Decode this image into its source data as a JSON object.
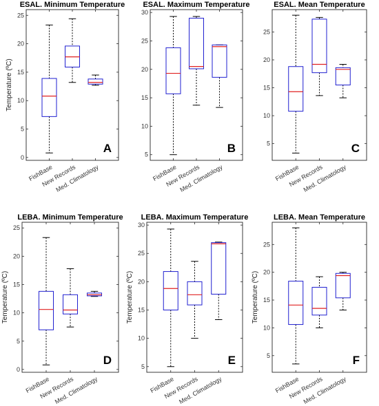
{
  "chart_data": [
    {
      "type": "box",
      "title": "ESAL. Minimum Temperature",
      "panel_label": "A",
      "ylabel": "Temperature (ºC)",
      "ylim": [
        -0.5,
        26
      ],
      "yticks": [
        0,
        5,
        10,
        15,
        20,
        25
      ],
      "categories": [
        "FishBase",
        "New Records",
        "Med. Climatology"
      ],
      "boxes": [
        {
          "min": 0.8,
          "q1": 7.2,
          "median": 10.8,
          "q3": 13.9,
          "max": 23.3
        },
        {
          "min": 13.2,
          "q1": 15.9,
          "median": 17.7,
          "q3": 19.6,
          "max": 24.4
        },
        {
          "min": 12.7,
          "q1": 12.9,
          "median": 13.2,
          "q3": 13.8,
          "max": 14.5
        }
      ]
    },
    {
      "type": "box",
      "title": "ESAL. Maximum Temperature",
      "panel_label": "B",
      "ylabel": "",
      "ylim": [
        4,
        30.5
      ],
      "yticks": [
        5,
        10,
        15,
        20,
        25,
        30
      ],
      "categories": [
        "FishBase",
        "New Records",
        "Med. Climatology"
      ],
      "boxes": [
        {
          "min": 5.0,
          "q1": 15.7,
          "median": 19.3,
          "q3": 23.8,
          "max": 29.3
        },
        {
          "min": 13.7,
          "q1": 20.1,
          "median": 20.5,
          "q3": 29.0,
          "max": 29.3
        },
        {
          "min": 13.3,
          "q1": 18.6,
          "median": 24.0,
          "q3": 24.3,
          "max": 24.3
        }
      ]
    },
    {
      "type": "box",
      "title": "ESAL. Mean Temperature",
      "panel_label": "C",
      "ylabel": "",
      "ylim": [
        2,
        29
      ],
      "yticks": [
        5,
        10,
        15,
        20,
        25
      ],
      "categories": [
        "FishBase",
        "New Records",
        "Med. Climatology"
      ],
      "boxes": [
        {
          "min": 3.3,
          "q1": 10.8,
          "median": 14.3,
          "q3": 18.8,
          "max": 28.0
        },
        {
          "min": 13.6,
          "q1": 17.7,
          "median": 19.2,
          "q3": 27.3,
          "max": 27.6
        },
        {
          "min": 13.2,
          "q1": 15.5,
          "median": 18.3,
          "q3": 18.6,
          "max": 19.2
        }
      ]
    },
    {
      "type": "box",
      "title": "LEBA. Minimum Temperature",
      "panel_label": "D",
      "ylabel": "Temperature (ºC)",
      "ylim": [
        -0.5,
        26
      ],
      "yticks": [
        0,
        5,
        10,
        15,
        20,
        25
      ],
      "categories": [
        "FishBase",
        "New Records",
        "Med. Climatology"
      ],
      "boxes": [
        {
          "min": 0.8,
          "q1": 7.0,
          "median": 10.6,
          "q3": 13.8,
          "max": 23.3
        },
        {
          "min": 7.5,
          "q1": 9.8,
          "median": 10.5,
          "q3": 13.2,
          "max": 17.8
        },
        {
          "min": 12.9,
          "q1": 13.0,
          "median": 13.2,
          "q3": 13.5,
          "max": 13.8
        }
      ]
    },
    {
      "type": "box",
      "title": "LEBA. Maximum Temperature",
      "panel_label": "E",
      "ylabel": "Temperature (ºC)",
      "ylim": [
        4,
        30.5
      ],
      "yticks": [
        5,
        10,
        15,
        20,
        25,
        30
      ],
      "categories": [
        "FishBase",
        "New Records",
        "Med. Climatology"
      ],
      "boxes": [
        {
          "min": 5.0,
          "q1": 15.0,
          "median": 18.8,
          "q3": 21.8,
          "max": 29.3
        },
        {
          "min": 10.0,
          "q1": 15.9,
          "median": 17.7,
          "q3": 20.0,
          "max": 23.6
        },
        {
          "min": 13.3,
          "q1": 17.8,
          "median": 26.7,
          "q3": 26.9,
          "max": 27.0
        }
      ]
    },
    {
      "type": "box",
      "title": "LEBA. Mean Temperature",
      "panel_label": "F",
      "ylabel": "Temperature (ºC)",
      "ylim": [
        2,
        29
      ],
      "yticks": [
        5,
        10,
        15,
        20,
        25
      ],
      "categories": [
        "FishBase",
        "New Records",
        "Med. Climatology"
      ],
      "boxes": [
        {
          "min": 3.5,
          "q1": 10.6,
          "median": 14.1,
          "q3": 18.4,
          "max": 28.0
        },
        {
          "min": 10.0,
          "q1": 12.3,
          "median": 13.5,
          "q3": 17.3,
          "max": 19.2
        },
        {
          "min": 13.2,
          "q1": 15.4,
          "median": 19.4,
          "q3": 19.8,
          "max": 20.0
        }
      ]
    }
  ],
  "colors": {
    "box": "#1f1fd0",
    "median": "#e02020",
    "whisker": "#000000",
    "axis": "#262626"
  }
}
